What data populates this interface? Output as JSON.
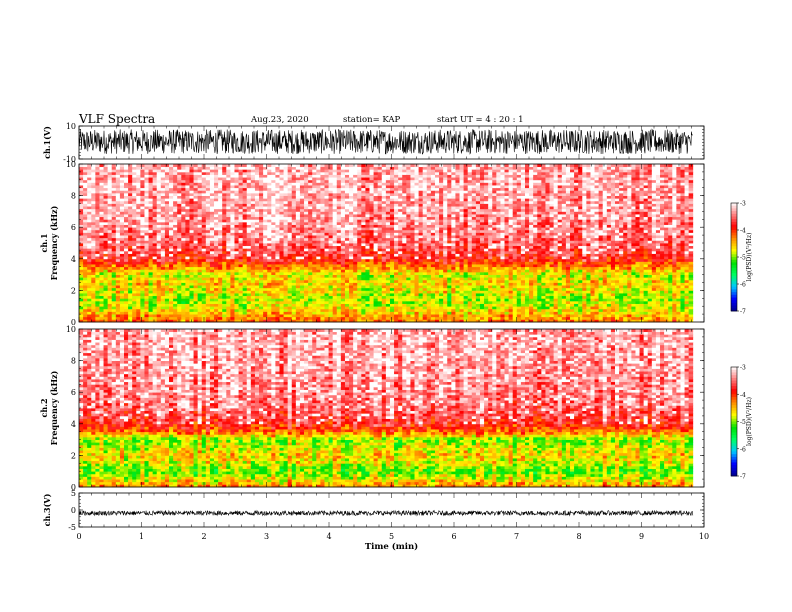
{
  "header": {
    "title": "VLF Spectra",
    "date": "Aug.23, 2020",
    "station": "station= KAP",
    "start": "start  UT =   4 : 20 : 1"
  },
  "chart_data": [
    {
      "type": "line",
      "panel": "ch1-waveform",
      "ylabel": "ch.1(V)",
      "ylim": [
        -10,
        10
      ],
      "yticks": [
        "10",
        "-10"
      ],
      "xlim": [
        0,
        10
      ],
      "duration_min": 9.82,
      "signal_band": [
        -7,
        8
      ]
    },
    {
      "type": "heatmap",
      "panel": "ch1-spectrogram",
      "ylabel": "ch.1\nFrequency  (kHz)",
      "ylim": [
        0,
        10
      ],
      "yticks": [
        "0",
        "2",
        "4",
        "6",
        "8",
        "10"
      ],
      "xlim": [
        0,
        10
      ],
      "duration_min": 9.82,
      "profile_kHz": [
        0,
        0.5,
        1,
        1.5,
        2,
        2.5,
        3,
        3.5,
        4,
        5,
        6,
        8,
        10
      ],
      "profile_logPSD": [
        -4.2,
        -4.5,
        -4.8,
        -4.9,
        -4.7,
        -4.6,
        -4.8,
        -4.3,
        -3.8,
        -3.5,
        -3.4,
        -3.3,
        -3.3
      ],
      "colorbar": {
        "label": "log(PSD)(V²/Hz)",
        "range": [
          -7,
          -3
        ],
        "ticks": [
          "-3",
          "-4",
          "-5",
          "-6",
          "-7"
        ]
      }
    },
    {
      "type": "heatmap",
      "panel": "ch2-spectrogram",
      "ylabel": "ch.2\nFrequency  (kHz)",
      "ylim": [
        0,
        10
      ],
      "yticks": [
        "0",
        "2",
        "4",
        "6",
        "8",
        "10"
      ],
      "xlim": [
        0,
        10
      ],
      "duration_min": 9.82,
      "profile_kHz": [
        0,
        0.5,
        1,
        1.5,
        2,
        2.5,
        3,
        3.5,
        4,
        5,
        6,
        8,
        10
      ],
      "profile_logPSD": [
        -4.3,
        -4.7,
        -5.1,
        -4.8,
        -4.6,
        -4.8,
        -5.0,
        -4.2,
        -3.8,
        -3.5,
        -3.4,
        -3.3,
        -3.3
      ],
      "colorbar": {
        "label": "log(PSD)(V²/Hz)",
        "range": [
          -7,
          -3
        ],
        "ticks": [
          "-3",
          "-4",
          "-5",
          "-6",
          "-7"
        ]
      }
    },
    {
      "type": "line",
      "panel": "ch3-waveform",
      "ylabel": "ch.3(V)",
      "ylim": [
        -5,
        5
      ],
      "yticks": [
        "5",
        "0",
        "-5"
      ],
      "xlim": [
        0,
        10
      ],
      "duration_min": 9.82,
      "signal_band": [
        -1.6,
        -0.2
      ]
    }
  ],
  "xaxis": {
    "label": "Time  (min)",
    "ticks": [
      "0",
      "1",
      "2",
      "3",
      "4",
      "5",
      "6",
      "7",
      "8",
      "9",
      "10"
    ]
  },
  "colors": {
    "colormap": [
      "#00008c",
      "#0000ff",
      "#00c8ff",
      "#00ff64",
      "#00e000",
      "#ffff00",
      "#ff9000",
      "#ff0000",
      "#ff8080",
      "#ffffff"
    ],
    "trace": "#000000"
  }
}
